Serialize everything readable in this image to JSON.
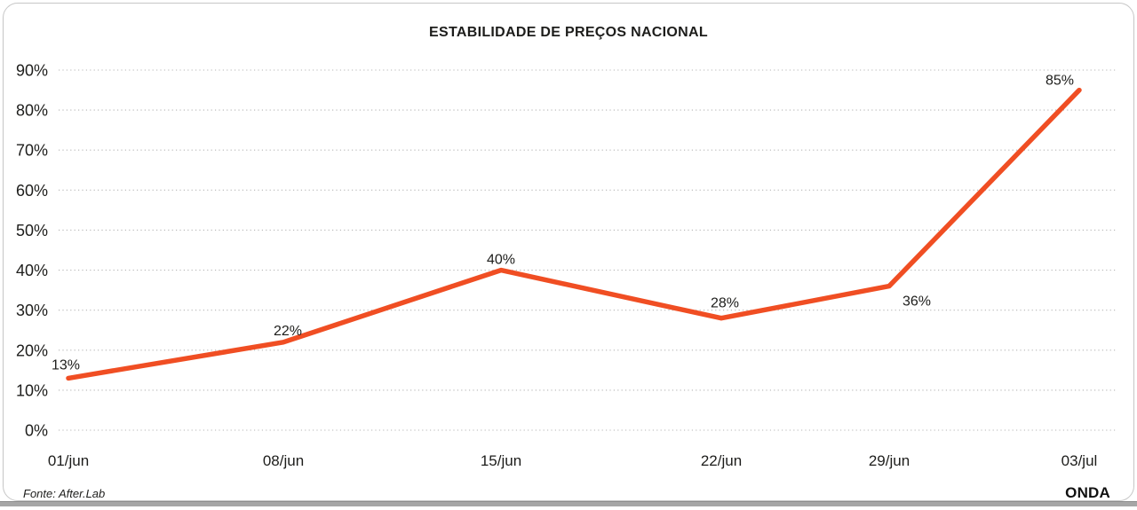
{
  "title": "ESTABILIDADE DE PREÇOS NACIONAL",
  "footer": {
    "source": "Fonte: After.Lab",
    "brand": "ONDA"
  },
  "chart_data": {
    "type": "line",
    "title": "ESTABILIDADE DE PREÇOS NACIONAL",
    "categories": [
      "01/jun",
      "08/jun",
      "15/jun",
      "22/jun",
      "29/jun",
      "03/jul"
    ],
    "values": [
      13,
      22,
      40,
      28,
      36,
      85
    ],
    "point_labels": [
      "13%",
      "22%",
      "40%",
      "28%",
      "36%",
      "85%"
    ],
    "xlabel": "",
    "ylabel": "",
    "ylim": [
      0,
      90
    ],
    "ytick_step": 10,
    "ytick_labels": [
      "0%",
      "10%",
      "20%",
      "30%",
      "40%",
      "50%",
      "60%",
      "70%",
      "80%",
      "90%"
    ],
    "grid": "horizontal-dotted",
    "legend": "none",
    "line_color": "#F04E23",
    "text_color": "#1D1D1B",
    "grid_color": "#B5B5B5"
  }
}
